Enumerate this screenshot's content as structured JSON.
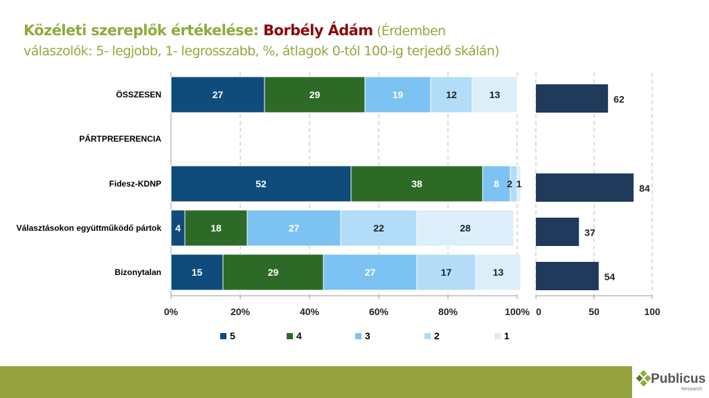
{
  "title": {
    "main": "Közéleti szereplők értékelése: ",
    "name": "Borbély Ádám",
    "subtitle": " (Érdemben válaszolók: 5- legjobb, 1- legrosszabb, %, átlagok 0-tól 100-ig terjedő skálán)"
  },
  "chart_data": [
    {
      "type": "bar",
      "orientation": "horizontal",
      "stacked": true,
      "categories": [
        "ÖSSZESEN",
        "PÁRTPREFERENCIA",
        "Fidesz-KDNP",
        "Választásokon együttműködő pártok",
        "Bizonytalan"
      ],
      "series": [
        {
          "name": "5",
          "color": "#0f4c7c",
          "values": [
            27,
            null,
            52,
            4,
            15
          ]
        },
        {
          "name": "4",
          "color": "#2e6a27",
          "values": [
            29,
            null,
            38,
            18,
            29
          ]
        },
        {
          "name": "3",
          "color": "#7cc2f2",
          "values": [
            19,
            null,
            8,
            27,
            27
          ]
        },
        {
          "name": "2",
          "color": "#b2dcf7",
          "values": [
            12,
            null,
            2,
            22,
            17
          ]
        },
        {
          "name": "1",
          "color": "#dbeef9",
          "values": [
            13,
            null,
            1,
            28,
            13
          ]
        }
      ],
      "xlim": [
        0,
        100
      ],
      "xticks": [
        "0%",
        "20%",
        "40%",
        "60%",
        "80%",
        "100%"
      ],
      "grid": true,
      "legend": "bottom"
    },
    {
      "type": "bar",
      "orientation": "horizontal",
      "categories": [
        "ÖSSZESEN",
        "PÁRTPREFERENCIA",
        "Fidesz-KDNP",
        "Választásokon együttműködő pártok",
        "Bizonytalan"
      ],
      "values": [
        62,
        null,
        84,
        37,
        54
      ],
      "color": "#1f3a5a",
      "xlim": [
        0,
        100
      ],
      "xticks": [
        "0",
        "50",
        "100"
      ],
      "grid": true
    }
  ],
  "logo": {
    "name": "Publicus",
    "sub": "Research"
  }
}
